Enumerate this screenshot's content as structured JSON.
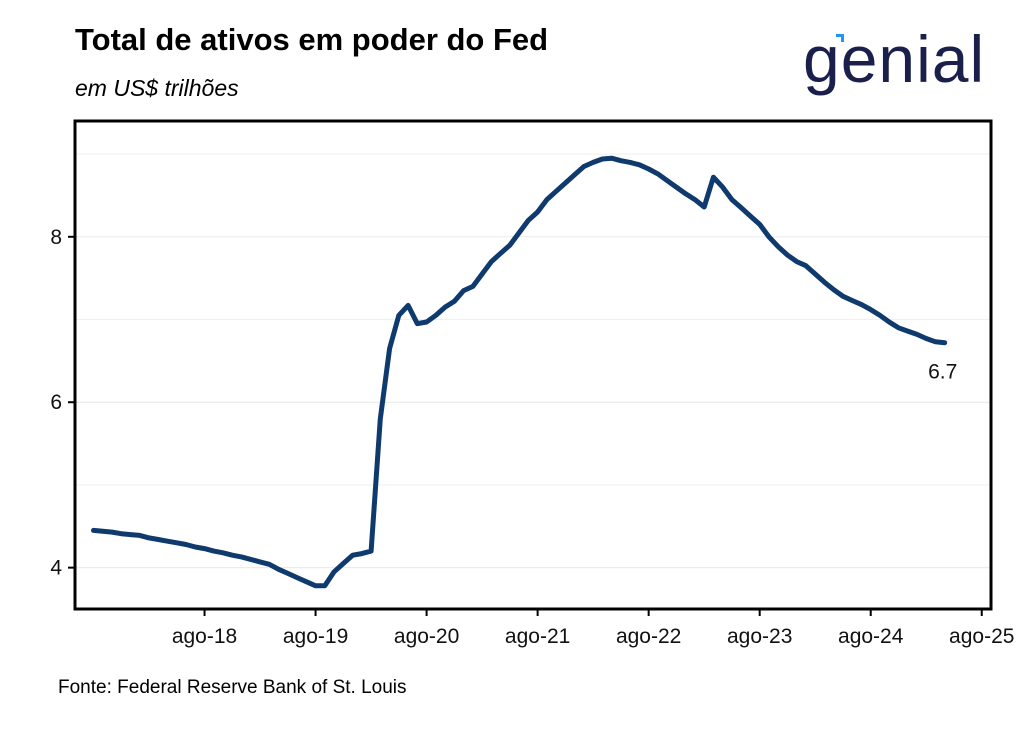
{
  "header": {
    "title": "Total de ativos em poder do Fed",
    "subtitle": "em US$ trilhões"
  },
  "logo": {
    "text": "genial",
    "icon": "genial-logo",
    "color": "#1a1f4b",
    "accent": "#2196f3"
  },
  "footer": {
    "source": "Fonte: Federal Reserve Bank of St. Louis"
  },
  "colors": {
    "line": "#0e3a6e",
    "annotation": "#1f4a85",
    "grid": "#ebebeb"
  },
  "chart_data": {
    "type": "line",
    "title": "Total de ativos em poder do Fed",
    "subtitle": "em US$ trilhões",
    "xlabel": "",
    "ylabel": "",
    "xlim": [
      "2017-06",
      "2025-09"
    ],
    "ylim": [
      3.5,
      9.4
    ],
    "grid": true,
    "x_ticks": [
      "ago-18",
      "ago-19",
      "ago-20",
      "ago-21",
      "ago-22",
      "ago-23",
      "ago-24",
      "ago-25"
    ],
    "x_tick_dates": [
      "2018-08",
      "2019-08",
      "2020-08",
      "2021-08",
      "2022-08",
      "2023-08",
      "2024-08",
      "2025-08"
    ],
    "y_ticks": [
      4,
      6,
      8
    ],
    "series": [
      {
        "values": [
          [
            "2017-08",
            4.45
          ],
          [
            "2017-09",
            4.44
          ],
          [
            "2017-10",
            4.43
          ],
          [
            "2017-11",
            4.41
          ],
          [
            "2017-12",
            4.4
          ],
          [
            "2018-01",
            4.39
          ],
          [
            "2018-02",
            4.36
          ],
          [
            "2018-03",
            4.34
          ],
          [
            "2018-04",
            4.32
          ],
          [
            "2018-05",
            4.3
          ],
          [
            "2018-06",
            4.28
          ],
          [
            "2018-07",
            4.25
          ],
          [
            "2018-08",
            4.23
          ],
          [
            "2018-09",
            4.2
          ],
          [
            "2018-10",
            4.18
          ],
          [
            "2018-11",
            4.15
          ],
          [
            "2018-12",
            4.13
          ],
          [
            "2019-01",
            4.1
          ],
          [
            "2019-02",
            4.07
          ],
          [
            "2019-03",
            4.04
          ],
          [
            "2019-04",
            3.98
          ],
          [
            "2019-05",
            3.93
          ],
          [
            "2019-06",
            3.88
          ],
          [
            "2019-07",
            3.83
          ],
          [
            "2019-08",
            3.78
          ],
          [
            "2019-09",
            3.78
          ],
          [
            "2019-10",
            3.95
          ],
          [
            "2019-11",
            4.05
          ],
          [
            "2019-12",
            4.15
          ],
          [
            "2020-01",
            4.17
          ],
          [
            "2020-02",
            4.2
          ],
          [
            "2020-03",
            5.8
          ],
          [
            "2020-04",
            6.65
          ],
          [
            "2020-05",
            7.05
          ],
          [
            "2020-06",
            7.17
          ],
          [
            "2020-07",
            6.95
          ],
          [
            "2020-08",
            6.97
          ],
          [
            "2020-09",
            7.05
          ],
          [
            "2020-10",
            7.15
          ],
          [
            "2020-11",
            7.22
          ],
          [
            "2020-12",
            7.35
          ],
          [
            "2021-01",
            7.4
          ],
          [
            "2021-02",
            7.55
          ],
          [
            "2021-03",
            7.7
          ],
          [
            "2021-04",
            7.8
          ],
          [
            "2021-05",
            7.9
          ],
          [
            "2021-06",
            8.05
          ],
          [
            "2021-07",
            8.2
          ],
          [
            "2021-08",
            8.3
          ],
          [
            "2021-09",
            8.45
          ],
          [
            "2021-10",
            8.55
          ],
          [
            "2021-11",
            8.65
          ],
          [
            "2021-12",
            8.75
          ],
          [
            "2022-01",
            8.85
          ],
          [
            "2022-02",
            8.9
          ],
          [
            "2022-03",
            8.94
          ],
          [
            "2022-04",
            8.95
          ],
          [
            "2022-05",
            8.92
          ],
          [
            "2022-06",
            8.9
          ],
          [
            "2022-07",
            8.87
          ],
          [
            "2022-08",
            8.82
          ],
          [
            "2022-09",
            8.76
          ],
          [
            "2022-10",
            8.68
          ],
          [
            "2022-11",
            8.6
          ],
          [
            "2022-12",
            8.52
          ],
          [
            "2023-01",
            8.45
          ],
          [
            "2023-02",
            8.36
          ],
          [
            "2023-03",
            8.72
          ],
          [
            "2023-04",
            8.6
          ],
          [
            "2023-05",
            8.45
          ],
          [
            "2023-06",
            8.35
          ],
          [
            "2023-07",
            8.25
          ],
          [
            "2023-08",
            8.15
          ],
          [
            "2023-09",
            8.0
          ],
          [
            "2023-10",
            7.88
          ],
          [
            "2023-11",
            7.78
          ],
          [
            "2023-12",
            7.7
          ],
          [
            "2024-01",
            7.65
          ],
          [
            "2024-02",
            7.55
          ],
          [
            "2024-03",
            7.45
          ],
          [
            "2024-04",
            7.36
          ],
          [
            "2024-05",
            7.28
          ],
          [
            "2024-06",
            7.23
          ],
          [
            "2024-07",
            7.18
          ],
          [
            "2024-08",
            7.12
          ],
          [
            "2024-09",
            7.05
          ],
          [
            "2024-10",
            6.97
          ],
          [
            "2024-11",
            6.9
          ],
          [
            "2024-12",
            6.86
          ],
          [
            "2025-01",
            6.82
          ],
          [
            "2025-02",
            6.77
          ],
          [
            "2025-03",
            6.73
          ],
          [
            "2025-04",
            6.72
          ]
        ]
      }
    ],
    "annotations": [
      {
        "text": "6.7",
        "x": "2025-04",
        "y": 6.72
      }
    ]
  }
}
